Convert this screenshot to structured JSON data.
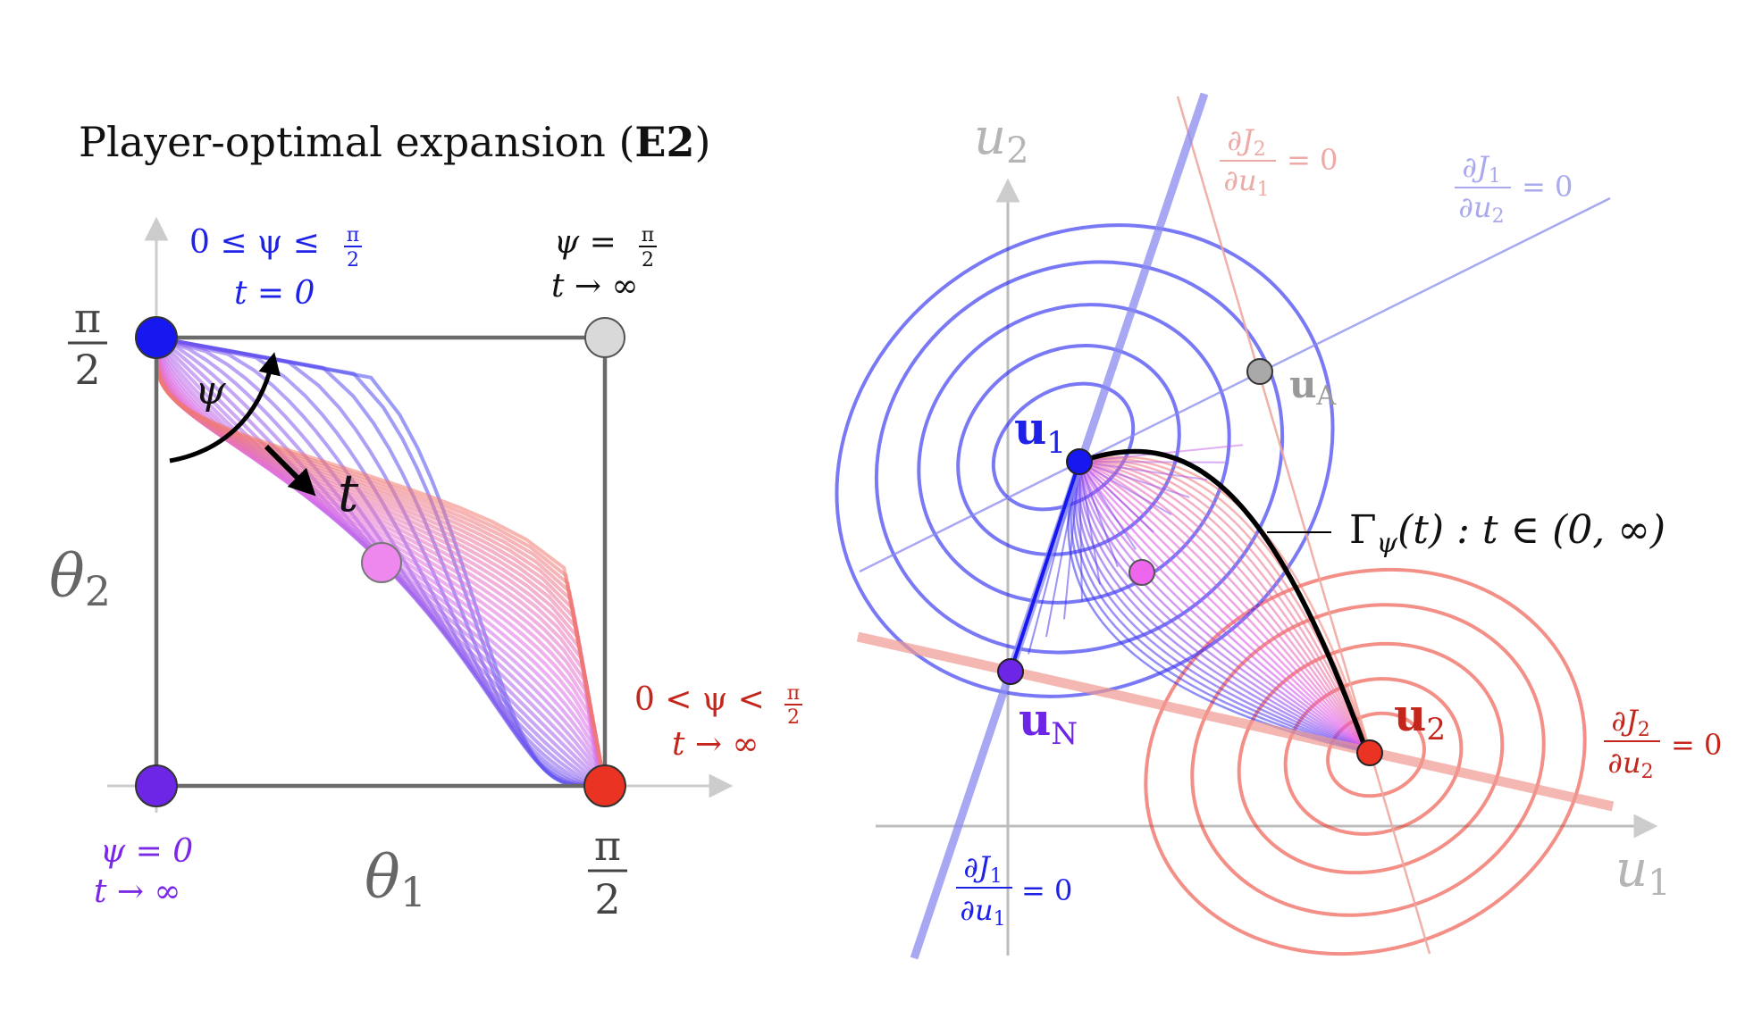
{
  "left_panel": {
    "title_text": "Player-optimal expansion (",
    "title_bold": "E2",
    "title_close": ")",
    "x_axis_label": "θ",
    "x_axis_sub": "1",
    "y_axis_label": "θ",
    "y_axis_sub": "2",
    "tick_pi": "π",
    "tick_two": "2",
    "psi_symbol": "ψ",
    "t_symbol": "t",
    "corner_top_left": {
      "line1": "0 ≤ ψ ≤",
      "frac_num": "π",
      "frac_den": "2",
      "line2": "t = 0",
      "color": "#1d22e6"
    },
    "corner_top_right": {
      "line1": "ψ =",
      "frac_num": "π",
      "frac_den": "2",
      "line2": "t → ∞",
      "color": "#111111"
    },
    "corner_bottom_right": {
      "line1": "0 < ψ <",
      "frac_num": "π",
      "frac_den": "2",
      "line2": "t → ∞",
      "color": "#c4261c"
    },
    "corner_bottom_left": {
      "line1": "ψ = 0",
      "line2": "t → ∞",
      "color": "#7a28e6"
    },
    "colors": {
      "blue": "#1717f0",
      "gray": "#d9d9d9",
      "red": "#ea3323",
      "purple": "#6e26e6",
      "pink": "#ee88ee",
      "frame": "#6a6a6a"
    }
  },
  "right_panel": {
    "u": "u",
    "x_axis_sub": "1",
    "y_axis_sub": "2",
    "point_u1_sub": "1",
    "point_u2_sub": "2",
    "point_uA_sub": "A",
    "point_uN_sub": "N",
    "partial": "∂",
    "J": "J",
    "eq_zero": "= 0",
    "curve_label": "Γ",
    "curve_label_sub": "ψ",
    "curve_label_rest": "(t) : t ∈ (0, ∞)",
    "labels": {
      "dJ2_du1": {
        "num_sub": "2",
        "den_sub": "1",
        "color": "#eeaaa6"
      },
      "dJ1_du2": {
        "num_sub": "1",
        "den_sub": "2",
        "color": "#a9a9ee"
      },
      "dJ2_du2": {
        "num_sub": "2",
        "den_sub": "2",
        "color": "#c4261c"
      },
      "dJ1_du1": {
        "num_sub": "1",
        "den_sub": "1",
        "color": "#1d22e6"
      }
    },
    "colors": {
      "blue": "#1717f0",
      "gray": "#a9a9a9",
      "red": "#ea3323",
      "purple": "#6e26e6",
      "pink": "#ee66ee",
      "axis": "#bdbdbd"
    }
  }
}
